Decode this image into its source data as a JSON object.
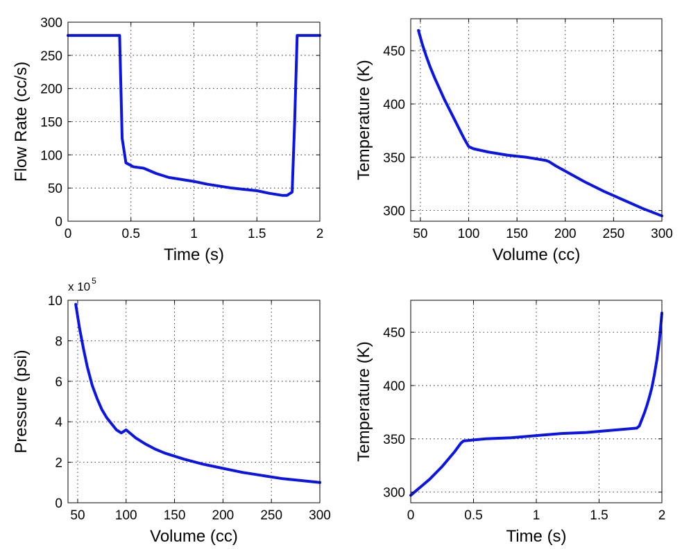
{
  "colors": {
    "line": "#0a14e6",
    "axis": "#000000",
    "grid": "#000000",
    "background": "#ffffff"
  },
  "chart_data": [
    {
      "type": "line",
      "xlabel": "Time (s)",
      "ylabel": "Flow Rate (cc/s)",
      "xlim": [
        0,
        2
      ],
      "ylim": [
        0,
        300
      ],
      "xticks": [
        0,
        0.5,
        1,
        1.5,
        2
      ],
      "yticks": [
        0,
        50,
        100,
        150,
        200,
        250,
        300
      ],
      "xticklabels": [
        "0",
        "0.5",
        "1",
        "1.5",
        "2"
      ],
      "yticklabels": [
        "0",
        "50",
        "100",
        "150",
        "200",
        "250",
        "300"
      ],
      "exponent_label": "",
      "grid": true,
      "series": [
        {
          "x": [
            0,
            0.41,
            0.43,
            0.46,
            0.52,
            0.6,
            0.7,
            0.8,
            0.9,
            1.0,
            1.1,
            1.2,
            1.3,
            1.4,
            1.5,
            1.6,
            1.7,
            1.74,
            1.78,
            1.8,
            1.82,
            2.0
          ],
          "y": [
            280,
            280,
            125,
            88,
            82,
            80,
            72,
            66,
            63,
            60,
            56,
            53,
            50,
            48,
            46,
            42,
            39,
            39,
            44,
            150,
            280,
            280
          ]
        }
      ]
    },
    {
      "type": "line",
      "xlabel": "Volume (cc)",
      "ylabel": "Temperature (K)",
      "xlim": [
        40,
        300
      ],
      "ylim": [
        290,
        480
      ],
      "xticks": [
        50,
        100,
        150,
        200,
        250,
        300
      ],
      "yticks": [
        300,
        350,
        400,
        450
      ],
      "xticklabels": [
        "50",
        "100",
        "150",
        "200",
        "250",
        "300"
      ],
      "yticklabels": [
        "300",
        "350",
        "400",
        "450"
      ],
      "exponent_label": "",
      "grid": true,
      "series": [
        {
          "x": [
            48,
            52,
            56,
            60,
            65,
            70,
            75,
            80,
            85,
            90,
            95,
            100,
            105,
            120,
            140,
            160,
            180,
            183,
            190,
            200,
            220,
            240,
            260,
            280,
            300
          ],
          "y": [
            469,
            456,
            445,
            435,
            424,
            414,
            404,
            395,
            386,
            377,
            368,
            360,
            358,
            355,
            352,
            350,
            347,
            346,
            342,
            337,
            327,
            318,
            310,
            302,
            295
          ]
        }
      ]
    },
    {
      "type": "line",
      "xlabel": "Volume (cc)",
      "ylabel": "Pressure (psi)",
      "xlim": [
        40,
        300
      ],
      "ylim": [
        0,
        10
      ],
      "xticks": [
        50,
        100,
        150,
        200,
        250,
        300
      ],
      "yticks": [
        0,
        2,
        4,
        6,
        8,
        10
      ],
      "xticklabels": [
        "50",
        "100",
        "150",
        "200",
        "250",
        "300"
      ],
      "yticklabels": [
        "0",
        "2",
        "4",
        "6",
        "8",
        "10"
      ],
      "exponent_label": "x 10",
      "exponent_power": "5",
      "grid": true,
      "series": [
        {
          "x": [
            48,
            52,
            56,
            60,
            65,
            70,
            75,
            80,
            85,
            90,
            95,
            100,
            110,
            120,
            130,
            140,
            150,
            160,
            180,
            200,
            220,
            240,
            260,
            280,
            300
          ],
          "y": [
            9.8,
            8.6,
            7.6,
            6.7,
            5.8,
            5.15,
            4.6,
            4.2,
            3.9,
            3.6,
            3.45,
            3.6,
            3.2,
            2.9,
            2.65,
            2.45,
            2.3,
            2.15,
            1.9,
            1.7,
            1.5,
            1.35,
            1.2,
            1.1,
            1.0
          ]
        }
      ]
    },
    {
      "type": "line",
      "xlabel": "Time (s)",
      "ylabel": "Temperature (K)",
      "xlim": [
        0,
        2
      ],
      "ylim": [
        290,
        480
      ],
      "xticks": [
        0,
        0.5,
        1,
        1.5,
        2
      ],
      "yticks": [
        300,
        350,
        400,
        450
      ],
      "xticklabels": [
        "0",
        "0.5",
        "1",
        "1.5",
        "2"
      ],
      "yticklabels": [
        "300",
        "350",
        "400",
        "450"
      ],
      "exponent_label": "",
      "grid": true,
      "series": [
        {
          "x": [
            0,
            0.05,
            0.1,
            0.15,
            0.2,
            0.25,
            0.3,
            0.35,
            0.4,
            0.42,
            0.5,
            0.6,
            0.8,
            1.0,
            1.2,
            1.4,
            1.6,
            1.8,
            1.82,
            1.84,
            1.86,
            1.88,
            1.9,
            1.92,
            1.94,
            1.96,
            1.98,
            2.0
          ],
          "y": [
            297,
            302,
            307,
            312,
            318,
            324,
            331,
            338,
            346,
            348,
            349,
            350,
            351,
            353,
            355,
            356,
            358,
            360,
            362,
            368,
            374,
            381,
            389,
            398,
            410,
            424,
            442,
            468
          ]
        }
      ]
    }
  ]
}
